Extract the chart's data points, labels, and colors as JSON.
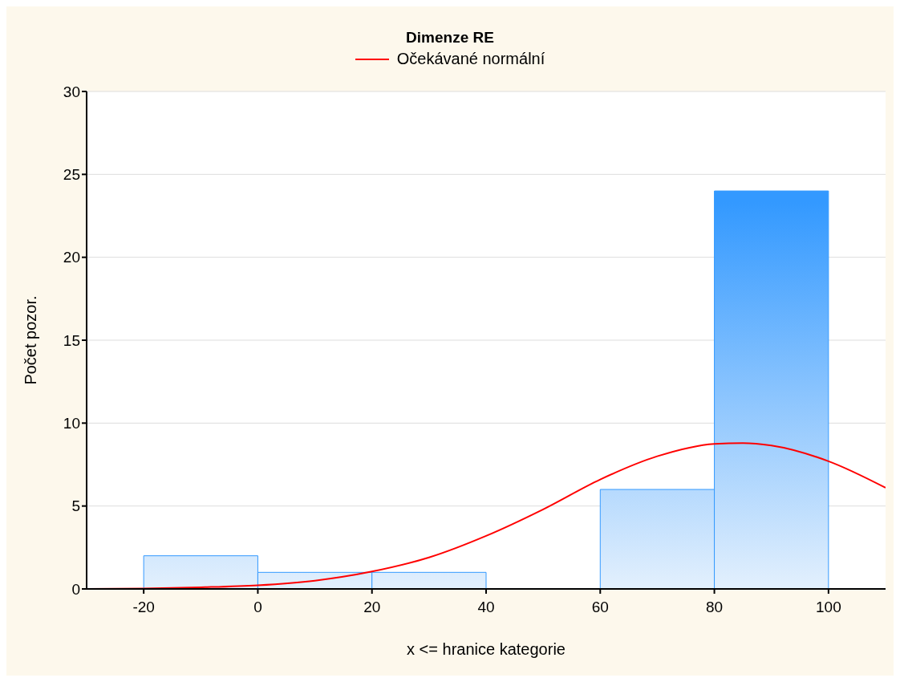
{
  "chart_data": {
    "type": "histogram",
    "title": "Dimenze RE",
    "xlabel": "x <= hranice kategorie",
    "ylabel": "Počet pozor.",
    "bins": [
      -20,
      0,
      20,
      40,
      60,
      80,
      100
    ],
    "values": [
      2,
      1,
      1,
      0,
      6,
      24
    ],
    "color": "#3399ff",
    "series": [
      {
        "type": "line",
        "name": "Očekávané normální",
        "color": "#ff0000",
        "x": [
          -30,
          -20,
          -10,
          0,
          10,
          20,
          30,
          40,
          50,
          60,
          70,
          80,
          85,
          90,
          100,
          110
        ],
        "values": [
          0,
          0.03,
          0.1,
          0.22,
          0.5,
          1.05,
          1.9,
          3.2,
          4.8,
          6.6,
          8.0,
          8.75,
          8.8,
          8.65,
          7.7,
          6.1
        ]
      }
    ],
    "xlim": [
      -30,
      110
    ],
    "xticks": [
      -20,
      0,
      20,
      40,
      60,
      80,
      100
    ],
    "ylim": [
      0,
      30
    ],
    "yticks": [
      0,
      5,
      10,
      15,
      20,
      25,
      30
    ],
    "grid": "y",
    "legend": "top"
  }
}
